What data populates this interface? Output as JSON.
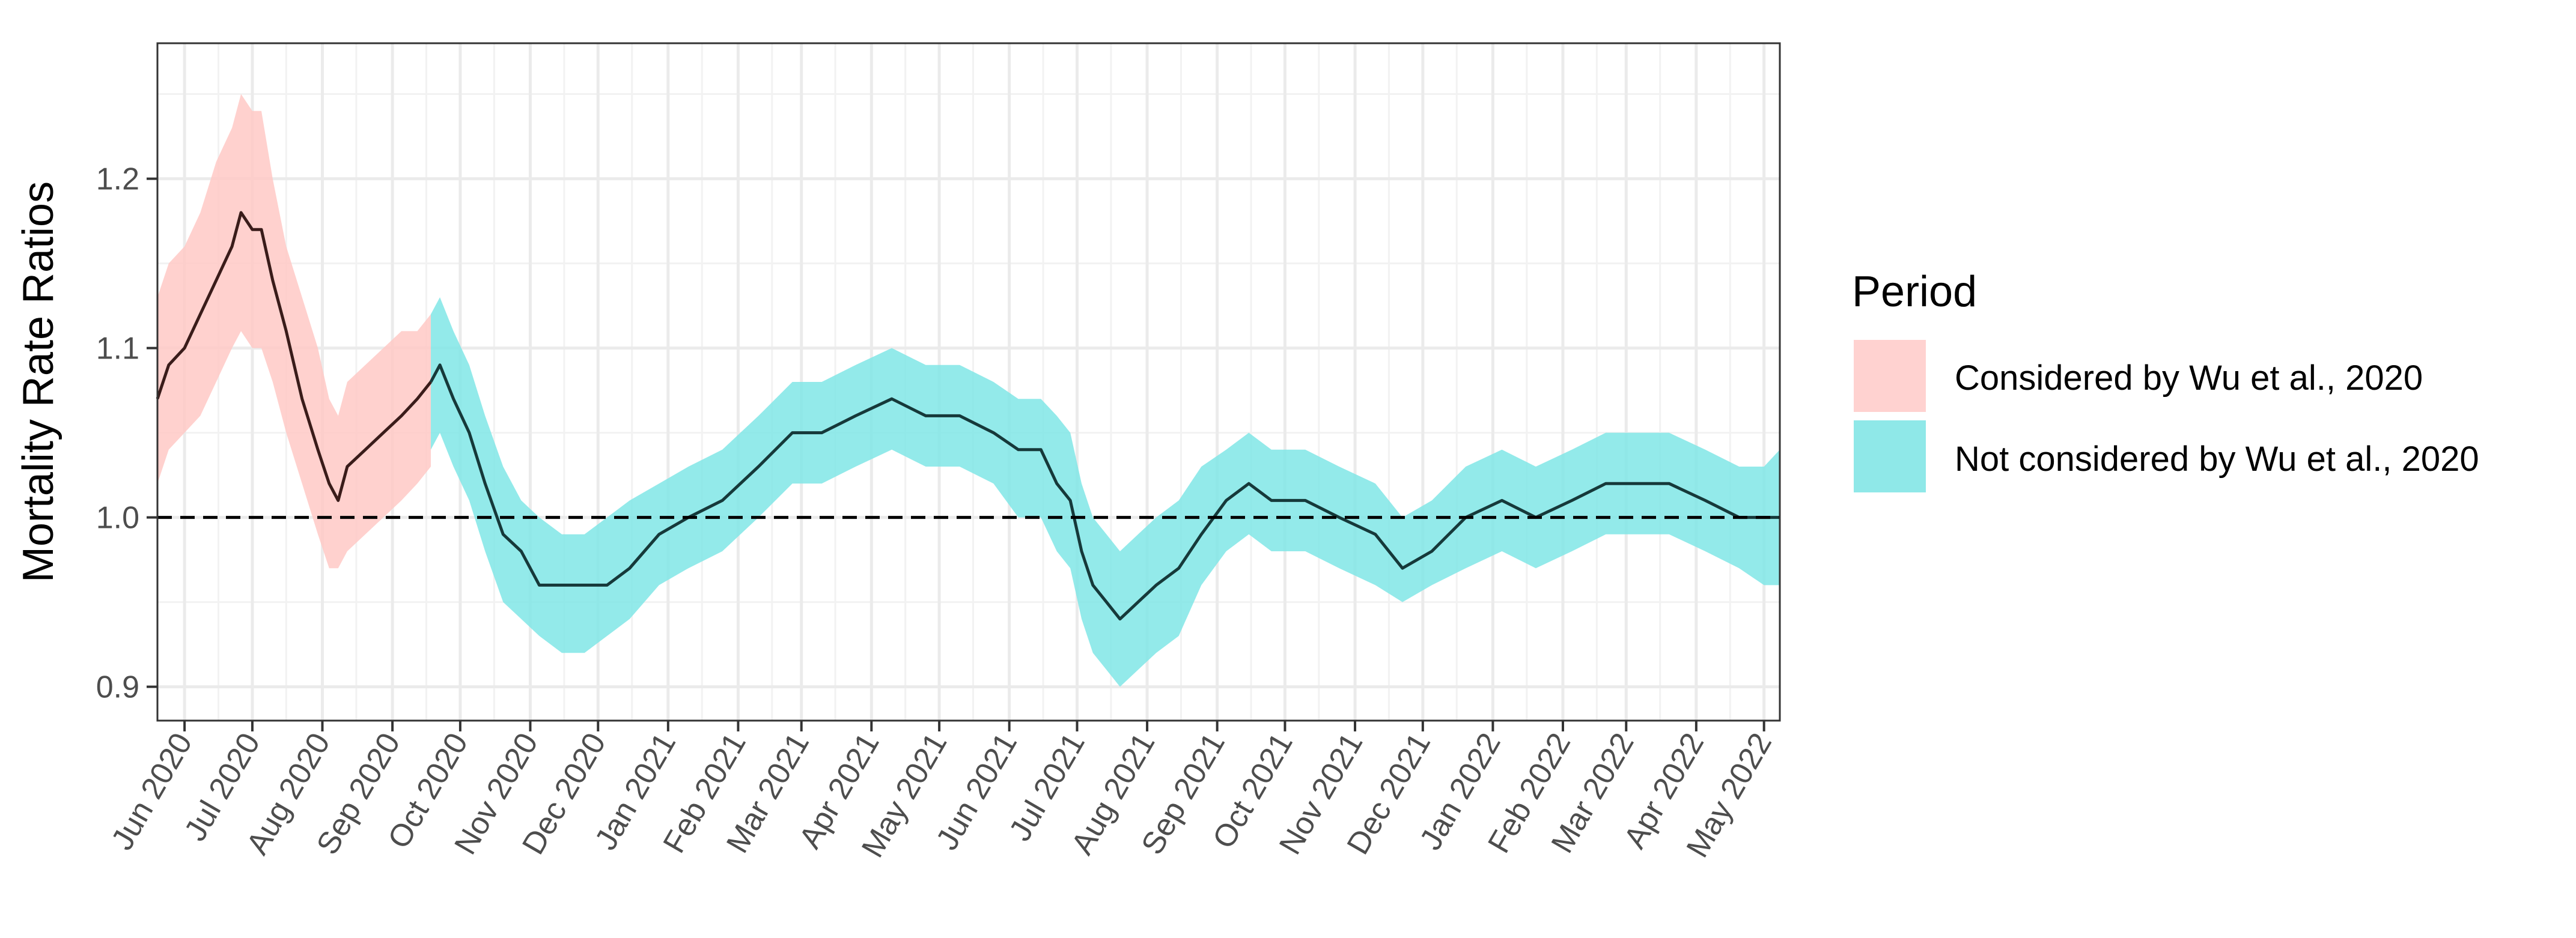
{
  "chart_data": {
    "type": "line",
    "ylabel": "Mortality Rate Ratios",
    "xlabel": "",
    "title": "",
    "ylim": [
      0.88,
      1.28
    ],
    "y_ticks": [
      "0.9",
      "1.0",
      "1.1",
      "1.2"
    ],
    "x_ticks": [
      "Jun 2020",
      "Jul 2020",
      "Aug 2020",
      "Sep 2020",
      "Oct 2020",
      "Nov 2020",
      "Dec 2020",
      "Jan 2021",
      "Feb 2021",
      "Mar 2021",
      "Apr 2021",
      "May 2021",
      "Jun 2021",
      "Jul 2021",
      "Aug 2021",
      "Sep 2021",
      "Oct 2021",
      "Nov 2021",
      "Dec 2021",
      "Jan 2022",
      "Feb 2022",
      "Mar 2022",
      "Apr 2022",
      "May 2022"
    ],
    "reference_line": {
      "y": 1.0,
      "style": "dashed"
    },
    "grid": true,
    "legend": {
      "title": "Period",
      "position": "right",
      "entries": [
        {
          "label": "Considered by Wu et al., 2020",
          "color": "#ffc9c6"
        },
        {
          "label": "Not considered by Wu et al., 2020",
          "color": "#7fe6e6"
        }
      ]
    },
    "series": [
      {
        "name": "Considered by Wu et al., 2020",
        "color": "#ffc9c6",
        "points": [
          [
            "2020-05-20",
            1.07,
            1.02,
            1.13
          ],
          [
            "2020-05-25",
            1.09,
            1.04,
            1.15
          ],
          [
            "2020-06-01",
            1.1,
            1.05,
            1.16
          ],
          [
            "2020-06-08",
            1.12,
            1.06,
            1.18
          ],
          [
            "2020-06-15",
            1.14,
            1.08,
            1.21
          ],
          [
            "2020-06-22",
            1.16,
            1.1,
            1.23
          ],
          [
            "2020-06-26",
            1.18,
            1.11,
            1.25
          ],
          [
            "2020-07-01",
            1.17,
            1.1,
            1.24
          ],
          [
            "2020-07-05",
            1.17,
            1.1,
            1.24
          ],
          [
            "2020-07-10",
            1.14,
            1.08,
            1.2
          ],
          [
            "2020-07-16",
            1.11,
            1.05,
            1.16
          ],
          [
            "2020-07-23",
            1.07,
            1.02,
            1.13
          ],
          [
            "2020-07-30",
            1.04,
            0.99,
            1.1
          ],
          [
            "2020-08-04",
            1.02,
            0.97,
            1.07
          ],
          [
            "2020-08-08",
            1.01,
            0.97,
            1.06
          ],
          [
            "2020-08-12",
            1.03,
            0.98,
            1.08
          ],
          [
            "2020-08-20",
            1.04,
            0.99,
            1.09
          ],
          [
            "2020-08-28",
            1.05,
            1.0,
            1.1
          ],
          [
            "2020-09-05",
            1.06,
            1.01,
            1.11
          ],
          [
            "2020-09-12",
            1.07,
            1.02,
            1.11
          ],
          [
            "2020-09-18",
            1.08,
            1.03,
            1.12
          ]
        ]
      },
      {
        "name": "Not considered by Wu et al., 2020",
        "color": "#7fe6e6",
        "points": [
          [
            "2020-09-18",
            1.08,
            1.04,
            1.12
          ],
          [
            "2020-09-22",
            1.09,
            1.05,
            1.13
          ],
          [
            "2020-09-28",
            1.07,
            1.03,
            1.11
          ],
          [
            "2020-10-05",
            1.05,
            1.01,
            1.09
          ],
          [
            "2020-10-12",
            1.02,
            0.98,
            1.06
          ],
          [
            "2020-10-20",
            0.99,
            0.95,
            1.03
          ],
          [
            "2020-10-28",
            0.98,
            0.94,
            1.01
          ],
          [
            "2020-11-05",
            0.96,
            0.93,
            1.0
          ],
          [
            "2020-11-15",
            0.96,
            0.92,
            0.99
          ],
          [
            "2020-11-25",
            0.96,
            0.92,
            0.99
          ],
          [
            "2020-12-05",
            0.96,
            0.93,
            1.0
          ],
          [
            "2020-12-15",
            0.97,
            0.94,
            1.01
          ],
          [
            "2020-12-28",
            0.99,
            0.96,
            1.02
          ],
          [
            "2021-01-10",
            1.0,
            0.97,
            1.03
          ],
          [
            "2021-01-25",
            1.01,
            0.98,
            1.04
          ],
          [
            "2021-02-10",
            1.03,
            1.0,
            1.06
          ],
          [
            "2021-02-25",
            1.05,
            1.02,
            1.08
          ],
          [
            "2021-03-10",
            1.05,
            1.02,
            1.08
          ],
          [
            "2021-03-25",
            1.06,
            1.03,
            1.09
          ],
          [
            "2021-04-10",
            1.07,
            1.04,
            1.1
          ],
          [
            "2021-04-25",
            1.06,
            1.03,
            1.09
          ],
          [
            "2021-05-10",
            1.06,
            1.03,
            1.09
          ],
          [
            "2021-05-25",
            1.05,
            1.02,
            1.08
          ],
          [
            "2021-06-05",
            1.04,
            1.0,
            1.07
          ],
          [
            "2021-06-15",
            1.04,
            1.0,
            1.07
          ],
          [
            "2021-06-22",
            1.02,
            0.98,
            1.06
          ],
          [
            "2021-06-28",
            1.01,
            0.97,
            1.05
          ],
          [
            "2021-07-03",
            0.98,
            0.94,
            1.02
          ],
          [
            "2021-07-08",
            0.96,
            0.92,
            1.0
          ],
          [
            "2021-07-14",
            0.95,
            0.91,
            0.99
          ],
          [
            "2021-07-20",
            0.94,
            0.9,
            0.98
          ],
          [
            "2021-07-28",
            0.95,
            0.91,
            0.99
          ],
          [
            "2021-08-05",
            0.96,
            0.92,
            1.0
          ],
          [
            "2021-08-15",
            0.97,
            0.93,
            1.01
          ],
          [
            "2021-08-25",
            0.99,
            0.96,
            1.03
          ],
          [
            "2021-09-05",
            1.01,
            0.98,
            1.04
          ],
          [
            "2021-09-15",
            1.02,
            0.99,
            1.05
          ],
          [
            "2021-09-25",
            1.01,
            0.98,
            1.04
          ],
          [
            "2021-10-10",
            1.01,
            0.98,
            1.04
          ],
          [
            "2021-10-25",
            1.0,
            0.97,
            1.03
          ],
          [
            "2021-11-10",
            0.99,
            0.96,
            1.02
          ],
          [
            "2021-11-22",
            0.97,
            0.95,
            1.0
          ],
          [
            "2021-12-05",
            0.98,
            0.96,
            1.01
          ],
          [
            "2021-12-20",
            1.0,
            0.97,
            1.03
          ],
          [
            "2022-01-05",
            1.01,
            0.98,
            1.04
          ],
          [
            "2022-01-20",
            1.0,
            0.97,
            1.03
          ],
          [
            "2022-02-05",
            1.01,
            0.98,
            1.04
          ],
          [
            "2022-02-20",
            1.02,
            0.99,
            1.05
          ],
          [
            "2022-03-05",
            1.02,
            0.99,
            1.05
          ],
          [
            "2022-03-20",
            1.02,
            0.99,
            1.05
          ],
          [
            "2022-04-05",
            1.01,
            0.98,
            1.04
          ],
          [
            "2022-04-20",
            1.0,
            0.97,
            1.03
          ],
          [
            "2022-05-01",
            1.0,
            0.96,
            1.03
          ],
          [
            "2022-05-08",
            1.0,
            0.96,
            1.04
          ]
        ]
      }
    ]
  }
}
